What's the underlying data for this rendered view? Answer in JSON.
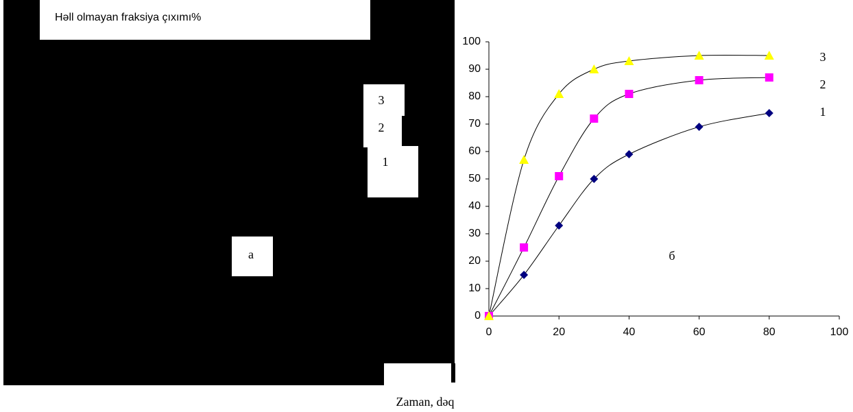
{
  "panel_a": {
    "title": "Həll olmayan fraksiya çıxımı%",
    "label": "a",
    "curve_labels": [
      "3",
      "2",
      "1"
    ]
  },
  "chart_data": {
    "type": "line",
    "panel_label": "б",
    "x_label": "Zaman, dəq",
    "x": [
      0,
      10,
      20,
      30,
      40,
      60,
      80
    ],
    "series": [
      {
        "name": "1",
        "color": "#000080",
        "marker": "diamond",
        "values": [
          0,
          15,
          33,
          50,
          59,
          69,
          74
        ]
      },
      {
        "name": "2",
        "color": "#ff00ff",
        "marker": "square",
        "values": [
          0,
          25,
          51,
          72,
          81,
          86,
          87
        ]
      },
      {
        "name": "3",
        "color": "#ffff00",
        "marker": "triangle",
        "values": [
          0,
          57,
          81,
          90,
          93,
          95,
          95
        ]
      }
    ],
    "line_color": "#000000",
    "xlim": [
      0,
      100
    ],
    "xticks": [
      0,
      20,
      40,
      60,
      80,
      100
    ],
    "ylim": [
      0,
      100
    ],
    "yticks": [
      0,
      10,
      20,
      30,
      40,
      50,
      60,
      70,
      80,
      90,
      100
    ],
    "grid": false
  }
}
